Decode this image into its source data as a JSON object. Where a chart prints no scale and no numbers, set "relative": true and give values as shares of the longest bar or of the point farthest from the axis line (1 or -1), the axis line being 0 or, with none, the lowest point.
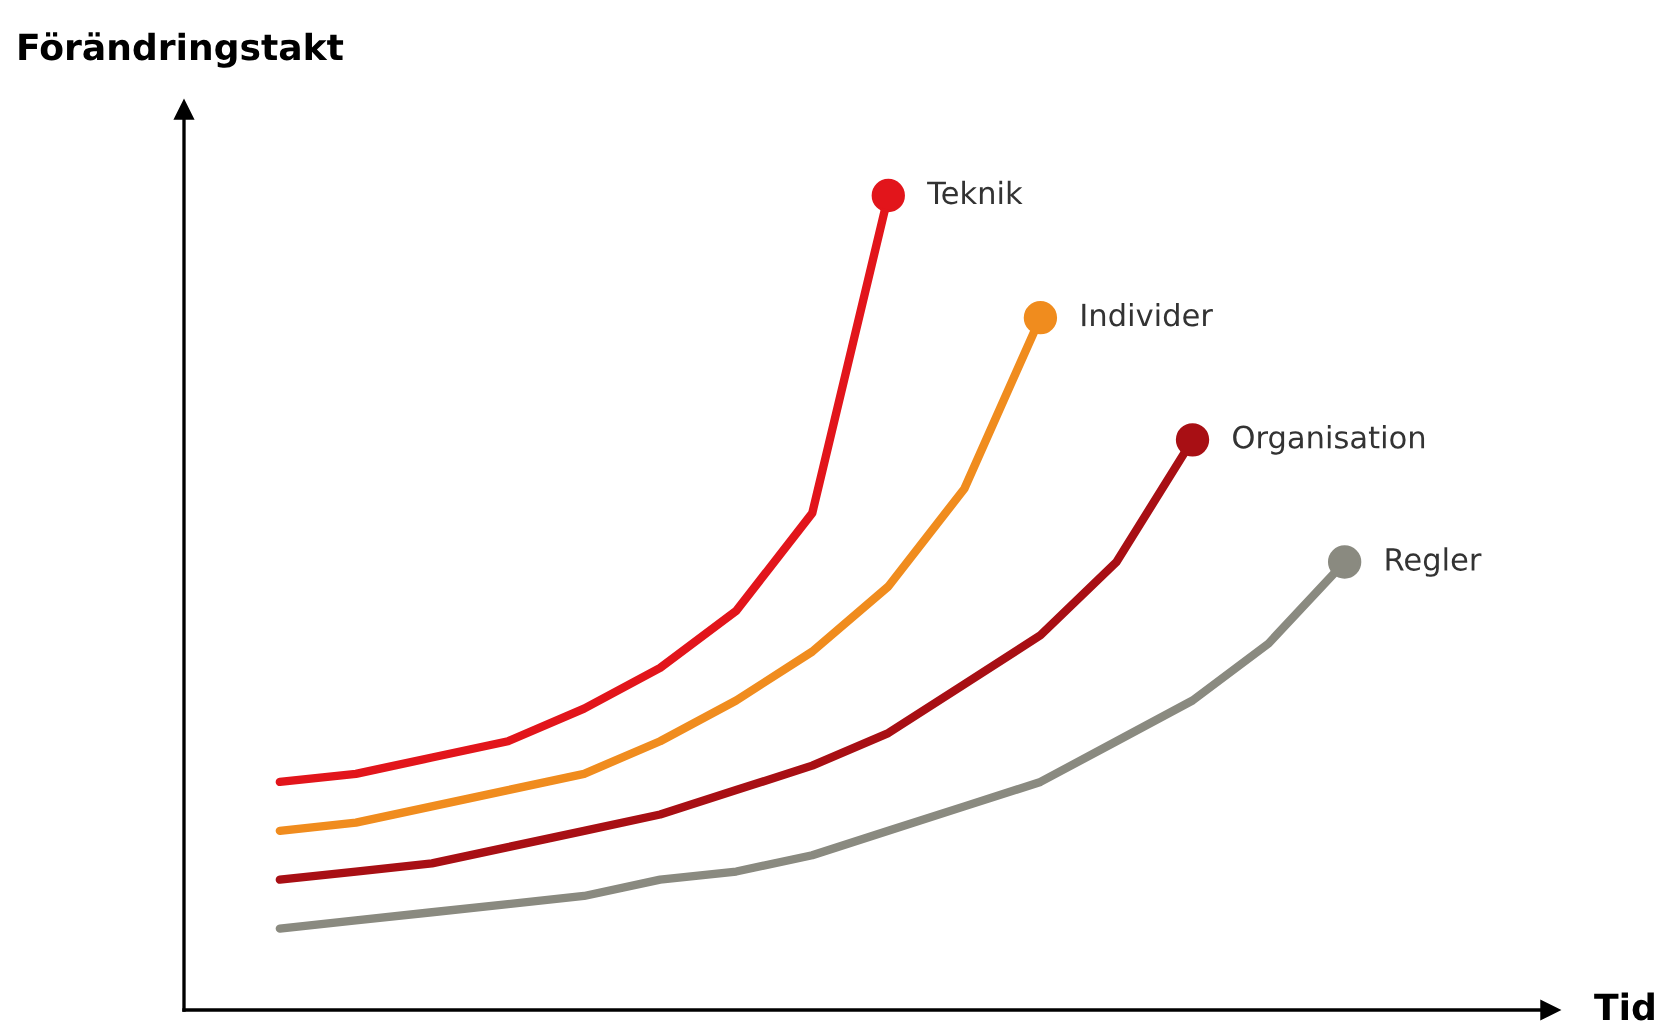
{
  "chart_data": {
    "type": "line",
    "relative": true,
    "annotations": [
      "Tid"
    ],
    "ylabel": "Förändringstakt",
    "legend": false,
    "line_style": "solid",
    "categories": [
      null,
      null,
      null,
      null,
      null,
      null,
      null,
      null,
      null,
      null,
      null,
      null,
      null,
      null,
      null
    ],
    "series": [
      {
        "name": "Teknik",
        "color": "#e2151b",
        "values": [
          0.28,
          0.29,
          0.31,
          0.33,
          0.37,
          0.42,
          0.49,
          0.61,
          1,
          null,
          null,
          null,
          null,
          null,
          null
        ]
      },
      {
        "name": "Individer",
        "color": "#f08c1e",
        "values": [
          0.22,
          0.23,
          0.25,
          0.27,
          0.29,
          0.33,
          0.38,
          0.44,
          0.52,
          0.64,
          0.85,
          null,
          null,
          null,
          null
        ]
      },
      {
        "name": "Organisation",
        "color": "#a80f14",
        "values": [
          0.16,
          0.17,
          0.18,
          0.2,
          0.22,
          0.24,
          0.27,
          0.3,
          0.34,
          0.4,
          0.46,
          0.55,
          0.7,
          null,
          null
        ]
      },
      {
        "name": "Regler",
        "color": "#8a8a80",
        "values": [
          0.1,
          0.11,
          0.12,
          0.13,
          0.14,
          0.16,
          0.17,
          0.19,
          0.22,
          0.25,
          0.28,
          0.33,
          0.38,
          0.45,
          0.55
        ]
      }
    ]
  }
}
